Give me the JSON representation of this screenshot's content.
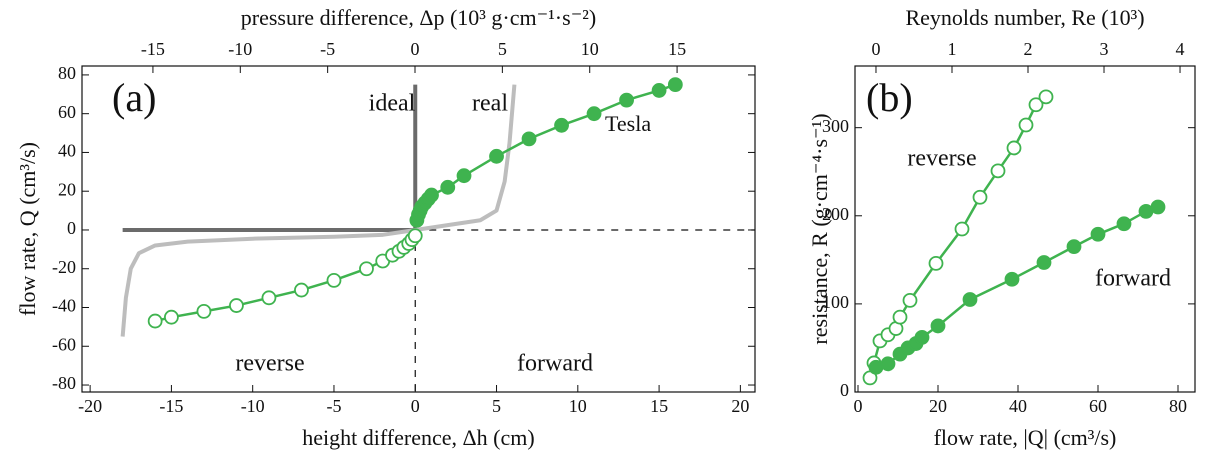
{
  "chart_data": [
    {
      "type": "line",
      "xlabel": "height difference, Δh (cm)",
      "ylabel": "flow rate, Q (cm³/s)",
      "x2label": "pressure difference, Δp (10³ g·cm⁻¹·s⁻²)",
      "xlim": [
        -20.5,
        20.9
      ],
      "xticks": [
        -20,
        -15,
        -10,
        -5,
        0,
        5,
        10,
        15,
        20
      ],
      "ylim": [
        -83.6,
        84.6
      ],
      "yticks": [
        -80,
        -60,
        -40,
        -20,
        0,
        20,
        40,
        60,
        80
      ],
      "x2lim": [
        -19.06,
        19.46
      ],
      "x2ticks": [
        -15,
        -10,
        -5,
        0,
        5,
        10,
        15
      ],
      "reference_lines": {
        "x": 0,
        "y": 0
      },
      "annotations": [
        "(a)",
        "Tesla"
      ],
      "series": [
        {
          "name": "ideal",
          "color": "#6b6b6b",
          "width": 4,
          "x": [
            -18,
            0,
            0
          ],
          "values": [
            0,
            0,
            75
          ]
        },
        {
          "name": "real",
          "color": "#bdbdbd",
          "width": 4,
          "x": [
            -18,
            -17.8,
            -17.5,
            -17,
            -16,
            -14,
            -10,
            -5,
            -2,
            0,
            2,
            4,
            5,
            5.5,
            5.8,
            6.1
          ],
          "values": [
            -55,
            -35,
            -20,
            -12,
            -8,
            -6,
            -4.5,
            -3.5,
            -2.5,
            0,
            2.5,
            5,
            10,
            25,
            45,
            75
          ]
        },
        {
          "name": "forward",
          "color": "#3fb34f",
          "width": 2.5,
          "marker": "filled",
          "x": [
            0.1,
            0.2,
            0.3,
            0.4,
            0.6,
            0.8,
            1,
            2,
            3,
            5,
            7,
            9,
            11,
            13,
            15,
            16
          ],
          "values": [
            5,
            8,
            10,
            12,
            14,
            16,
            18,
            22,
            28,
            38,
            47,
            54,
            60,
            67,
            72,
            75
          ]
        },
        {
          "name": "reverse",
          "color": "#3fb34f",
          "width": 2.5,
          "marker": "open",
          "x": [
            -16,
            -15,
            -13,
            -11,
            -9,
            -7,
            -5,
            -3,
            -2,
            -1.4,
            -1,
            -0.7,
            -0.4,
            -0.2,
            0
          ],
          "values": [
            -47,
            -45,
            -42,
            -39,
            -35,
            -31,
            -26,
            -20,
            -16,
            -13,
            -11,
            -9,
            -7,
            -5,
            -3
          ]
        }
      ]
    },
    {
      "type": "line",
      "xlabel": "flow rate, |Q| (cm³/s)",
      "ylabel": "resistance, R (g·cm⁻⁴·s⁻¹)",
      "x2label": "Reynolds number, Re (10³)",
      "xlim": [
        -0.75,
        84.25
      ],
      "xticks": [
        0,
        20,
        40,
        60,
        80
      ],
      "ylim": [
        0,
        370
      ],
      "yticks": [
        0,
        100,
        200,
        300
      ],
      "x2lim": [
        -0.276,
        4.197
      ],
      "x2ticks": [
        0,
        1,
        2,
        3,
        4
      ],
      "annotations": [
        "(b)"
      ],
      "series": [
        {
          "name": "reverse",
          "color": "#3fb34f",
          "width": 2.5,
          "marker": "open",
          "x": [
            3,
            4,
            5.5,
            7.5,
            9.5,
            10.5,
            13,
            19.5,
            26,
            30.5,
            35,
            39,
            42,
            44.5,
            47
          ],
          "values": [
            16,
            33,
            58,
            65,
            72,
            85,
            104,
            146,
            185,
            221,
            251,
            277,
            303,
            326,
            335
          ]
        },
        {
          "name": "forward",
          "color": "#3fb34f",
          "width": 2.5,
          "marker": "filled",
          "x": [
            4.5,
            7.5,
            10.5,
            12.5,
            14.5,
            16,
            20,
            28,
            38.5,
            46.5,
            54,
            60,
            66.5,
            72,
            75
          ],
          "values": [
            28,
            32,
            43,
            50,
            55,
            62,
            75,
            105,
            128,
            147,
            165,
            179,
            191,
            205,
            210
          ]
        }
      ]
    }
  ]
}
